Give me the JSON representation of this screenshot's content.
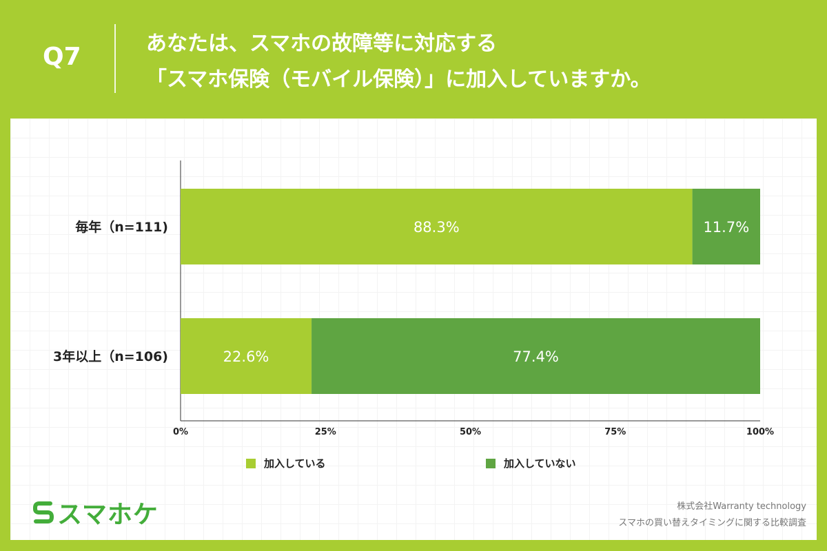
{
  "header": {
    "question_label": "Q7",
    "title_line1": "あなたは、スマホの故障等に対応する",
    "title_line2": "「スマホ保険（モバイル保険）」に加入していますか。"
  },
  "colors": {
    "background": "#a8cd32",
    "series_joined": "#a8cd32",
    "series_not_joined": "#5fa542",
    "logo_green": "#43ad3a"
  },
  "chart_data": {
    "type": "bar",
    "orientation": "horizontal",
    "stacked": true,
    "categories": [
      "毎年（n=111)",
      "3年以上（n=106)"
    ],
    "series": [
      {
        "name": "加入している",
        "values": [
          88.3,
          22.6
        ],
        "labels": [
          "88.3%",
          "22.6%"
        ]
      },
      {
        "name": "加入していない",
        "values": [
          11.7,
          77.4
        ],
        "labels": [
          "11.7%",
          "77.4%"
        ]
      }
    ],
    "xlim": [
      0,
      100
    ],
    "x_ticks": [
      "0%",
      "25%",
      "50%",
      "75%",
      "100%"
    ],
    "legend_position": "bottom",
    "grid": false
  },
  "footer": {
    "logo_mark": "S",
    "logo_text": "スマホケ",
    "credit_line1": "株式会社Warranty technology",
    "credit_line2": "スマホの買い替えタイミングに関する比較調査"
  }
}
